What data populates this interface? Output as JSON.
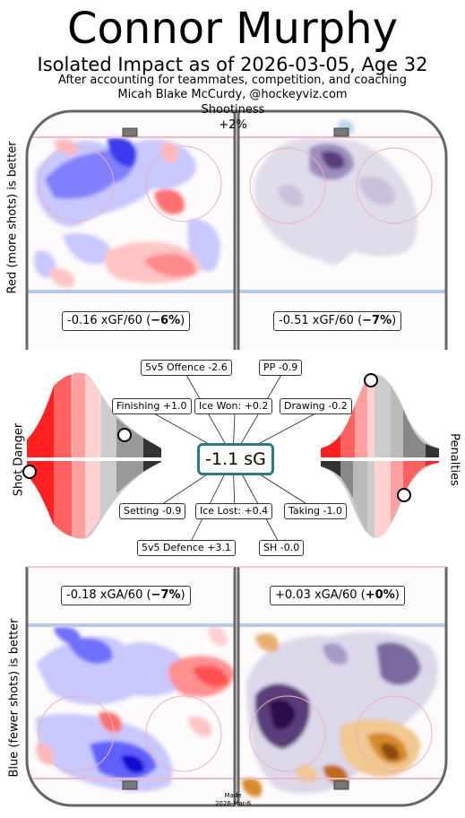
{
  "header": {
    "title": "Connor Murphy",
    "subtitle": "Isolated Impact as of 2026-03-05, Age 32",
    "line3": "After accounting for teammates, competition, and coaching",
    "line4": "Micah Blake McCurdy, @hockeyviz.com",
    "shootiness_label": "Shootiness",
    "shootiness_value": "+2%"
  },
  "side_labels": {
    "top": "Red (more shots) is better",
    "bottom": "Blue (fewer shots) is better",
    "shot_danger": "Shot Danger",
    "penalties": "Penalties"
  },
  "rates": {
    "xgf_5v5": {
      "text": "-0.16 xGF/60 (",
      "pct": "−6%",
      "close": ")"
    },
    "xgf_pp": {
      "text": "-0.51 xGF/60 (",
      "pct": "−7%",
      "close": ")"
    },
    "xga_5v5": {
      "text": "-0.18 xGA/60 (",
      "pct": "−7%",
      "close": ")"
    },
    "xga_pk": {
      "text": "+0.03 xGA/60 (",
      "pct": "+0%",
      "close": ")"
    }
  },
  "summary": {
    "total": "-1.1 sG",
    "offence_5v5": "5v5 Offence -2.6",
    "pp": "PP -0.9",
    "finishing": "Finishing +1.0",
    "ice_won": "Ice Won: +0.2",
    "drawing": "Drawing -0.2",
    "setting": "Setting -0.9",
    "ice_lost": "Ice Lost: +0.4",
    "taking": "Taking -1.0",
    "defence_5v5": "5v5 Defence +3.1",
    "sh": "SH -0.0"
  },
  "distributions": {
    "shot_danger": {
      "offence_marker_percentile": 0.8,
      "defence_marker_percentile": 0.0
    },
    "penalties": {
      "drawing_marker_percentile": 0.45,
      "taking_marker_percentile": 0.3
    }
  },
  "colors": {
    "rink_border": "#666666",
    "blue_line": "#b8c8e8",
    "red_line": "#f0b8c8",
    "more": "#ff4040",
    "fewer": "#4040ff",
    "pp_purple": "#5a3d7a",
    "pk_orange": "#d88a2a",
    "accent": "#2a7b83"
  },
  "footer": {
    "made_line1": "Made",
    "made_line2": "2026-Mar-6"
  }
}
